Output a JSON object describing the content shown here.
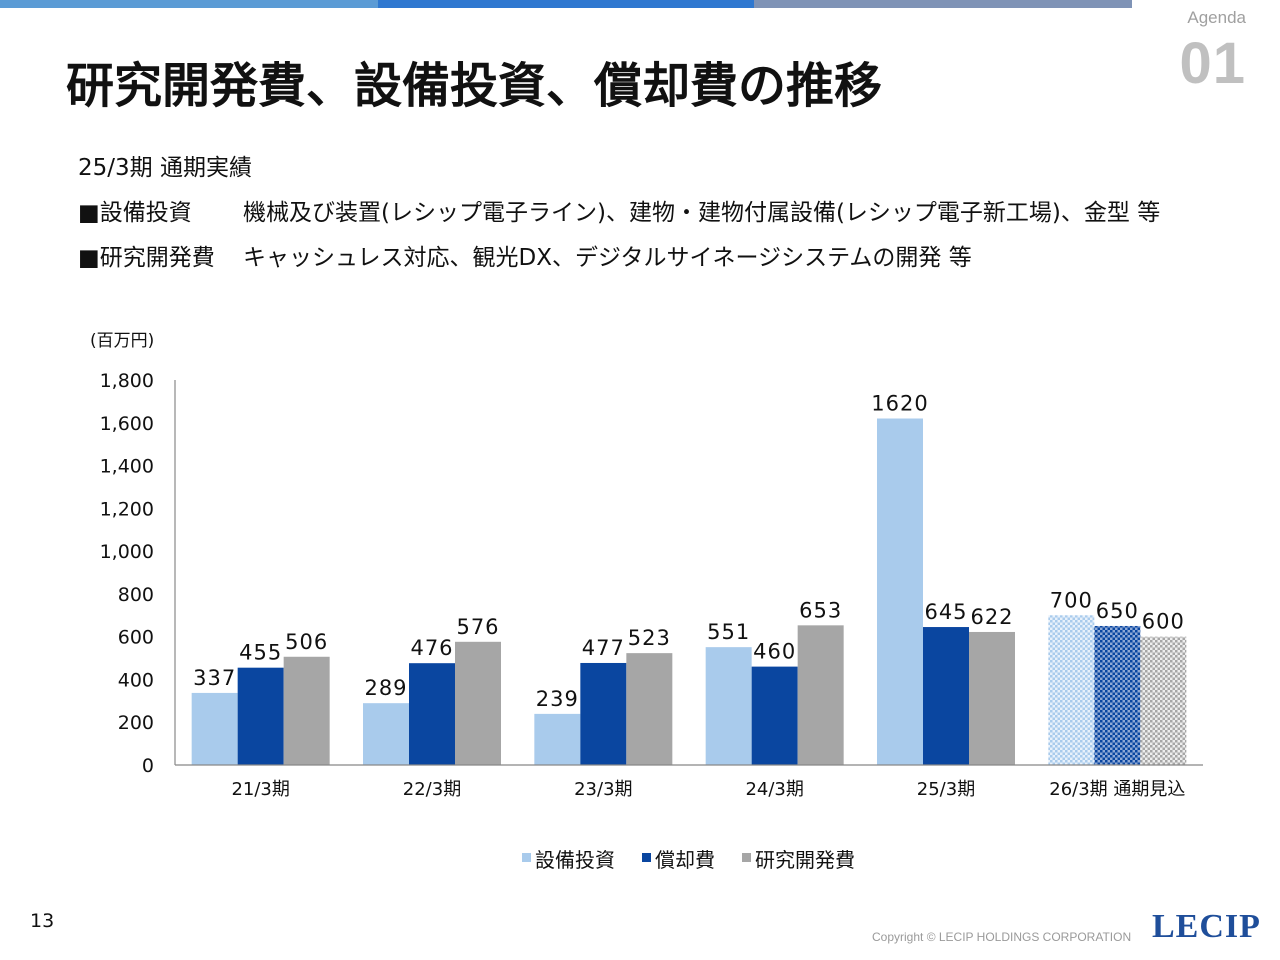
{
  "header": {
    "agenda_label": "Agenda",
    "agenda_number": "01",
    "title": "研究開発費、設備投資、償却費の推移"
  },
  "summary": {
    "period": "25/3期 通期実績",
    "items": [
      {
        "label": "■設備投資",
        "text": "機械及び装置(レシップ電子ライン)、建物・建物付属設備(レシップ電子新工場)、金型 等"
      },
      {
        "label": "■研究開発費",
        "text": "キャッシュレス対応、観光DX、デジタルサイネージシステムの開発 等"
      }
    ]
  },
  "chart_data": {
    "type": "bar",
    "unit_label": "(百万円)",
    "categories": [
      "21/3期",
      "22/3期",
      "23/3期",
      "24/3期",
      "25/3期",
      "26/3期 通期見込"
    ],
    "series": [
      {
        "name": "設備投資",
        "color": "#a9cbec",
        "values": [
          337,
          289,
          239,
          551,
          1620,
          700
        ]
      },
      {
        "name": "償却費",
        "color": "#0a46a0",
        "values": [
          455,
          476,
          477,
          460,
          645,
          650
        ]
      },
      {
        "name": "研究開発費",
        "color": "#a6a6a6",
        "values": [
          506,
          576,
          523,
          653,
          622,
          600
        ]
      }
    ],
    "forecast_category": "26/3期 通期見込",
    "ylim": [
      0,
      1800
    ],
    "yticks": [
      "0",
      "200",
      "400",
      "600",
      "800",
      "1,000",
      "1,200",
      "1,400",
      "1,600",
      "1,800"
    ],
    "legend_position": "bottom",
    "grid": false
  },
  "footer": {
    "page_number": "13",
    "copyright": "Copyright © LECIP HOLDINGS CORPORATION",
    "logo": "LECIP"
  }
}
